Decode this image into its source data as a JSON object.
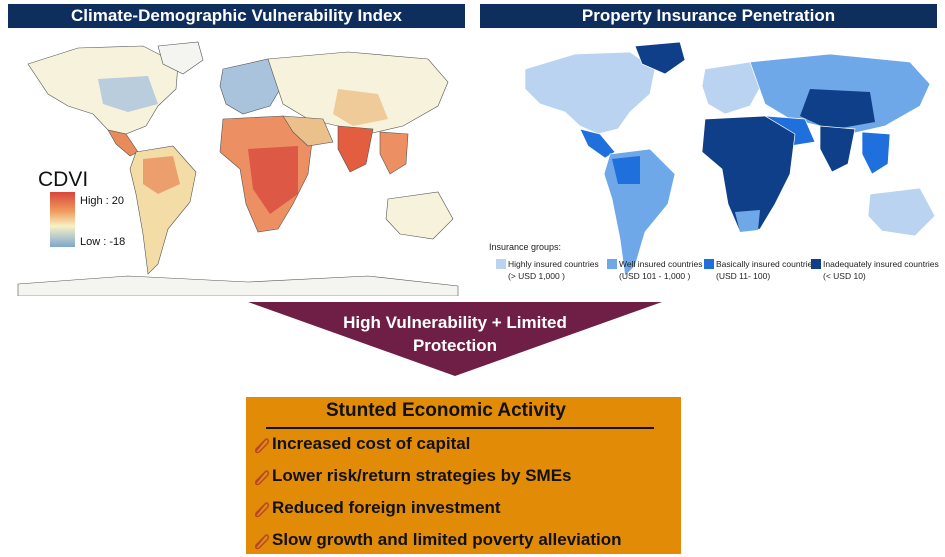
{
  "left_panel": {
    "title": "Climate-Demographic Vulnerability Index",
    "legend_title": "CDVI",
    "legend_high": "High : 20",
    "legend_low": "Low : -18"
  },
  "right_panel": {
    "title": "Property Insurance Penetration",
    "legend_title": "Insurance groups:",
    "groups": [
      {
        "label": "Highly insured countries",
        "range": "(> USD 1,000 )",
        "color": "#b9d3f1"
      },
      {
        "label": "Well insured countries",
        "range": "(USD 101 - 1,000 )",
        "color": "#6fa8e8"
      },
      {
        "label": "Basically insured countries",
        "range": "(USD 11- 100)",
        "color": "#1f6fdc"
      },
      {
        "label": "Inadequately insured countries",
        "range": "(< USD 10)",
        "color": "#103f8a"
      }
    ]
  },
  "arrow": {
    "line1": "High Vulnerability + Limited",
    "line2": "Protection",
    "color": "#6f1f46"
  },
  "outcome": {
    "title": "Stunted Economic Activity",
    "items": [
      "Increased cost of capital",
      "Lower risk/return strategies by SMEs",
      "Reduced foreign investment",
      "Slow growth and limited poverty alleviation"
    ],
    "color": "#e18b06"
  }
}
